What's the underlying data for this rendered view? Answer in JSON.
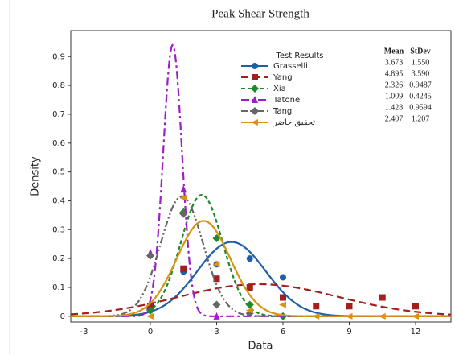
{
  "chart_data": {
    "type": "scatter-fit",
    "title": "Peak Shear Strength",
    "xlabel": "Data",
    "ylabel": "Density",
    "xlim": [
      -3.6,
      13.6
    ],
    "ylim": [
      -0.02,
      0.99
    ],
    "xticks": [
      -3,
      0,
      3,
      6,
      9,
      12
    ],
    "yticks": [
      0.0,
      0.1,
      0.2,
      0.3,
      0.4,
      0.5,
      0.6,
      0.7,
      0.8,
      0.9
    ],
    "legend_title": "Test Results",
    "stat_headers": [
      "Mean",
      "StDev"
    ],
    "series": [
      {
        "name": "Grasselli",
        "color": "#1f5fa8",
        "dash": "none",
        "marker": "circle",
        "mean": {
          "value": 3.673,
          "label": "3.673"
        },
        "stdev": {
          "value": 1.55,
          "label": "1.550"
        },
        "x": [
          0,
          1.5,
          3,
          4.5,
          6
        ],
        "values": [
          0.02,
          0.155,
          0.18,
          0.2,
          0.135
        ]
      },
      {
        "name": "Yang",
        "color": "#a31f1f",
        "dash": "9,5",
        "marker": "square",
        "mean": {
          "value": 4.895,
          "label": "4.895"
        },
        "stdev": {
          "value": 3.59,
          "label": "3.590"
        },
        "x": [
          0,
          1.5,
          3,
          4.5,
          6,
          7.5,
          9,
          10.5,
          12
        ],
        "values": [
          0.035,
          0.165,
          0.13,
          0.1,
          0.065,
          0.035,
          0.035,
          0.065,
          0.035
        ]
      },
      {
        "name": "Xia",
        "color": "#1e8a2e",
        "dash": "5,3",
        "marker": "diamond",
        "mean": {
          "value": 2.326,
          "label": "2.326"
        },
        "stdev": {
          "value": 0.9487,
          "label": "0.9487"
        },
        "x": [
          0,
          1.5,
          3,
          4.5,
          6
        ],
        "values": [
          0.02,
          0.36,
          0.27,
          0.04,
          0.0
        ]
      },
      {
        "name": "Tatone",
        "color": "#9b1fc4",
        "dash": "10,4,3,4",
        "marker": "triangle",
        "mean": {
          "value": 1.009,
          "label": "1.009"
        },
        "stdev": {
          "value": 0.4245,
          "label": "0.4245"
        },
        "x": [
          0,
          1.5,
          3
        ],
        "values": [
          0.22,
          0.44,
          0.0
        ]
      },
      {
        "name": "Tang",
        "color": "#666666",
        "dash": "8,3,2,3,2,3",
        "marker": "diamond",
        "mean": {
          "value": 1.428,
          "label": "1.428"
        },
        "stdev": {
          "value": 0.9594,
          "label": "0.9594"
        },
        "x": [
          0,
          1.5,
          3,
          4.5
        ],
        "values": [
          0.21,
          0.355,
          0.04,
          0.01
        ]
      },
      {
        "name": "تحقیق حاضر",
        "color": "#d9940f",
        "dash": "none",
        "marker": "triangle-left",
        "mean": {
          "value": 2.407,
          "label": "2.407"
        },
        "stdev": {
          "value": 1.207,
          "label": "1.207"
        },
        "x": [
          0,
          1.5,
          3,
          4.5,
          6,
          7.5,
          9,
          10.5,
          12
        ],
        "values": [
          0.0,
          0.41,
          0.18,
          0.02,
          0.04,
          0.0,
          0.0,
          0.0,
          0.0
        ]
      }
    ]
  }
}
